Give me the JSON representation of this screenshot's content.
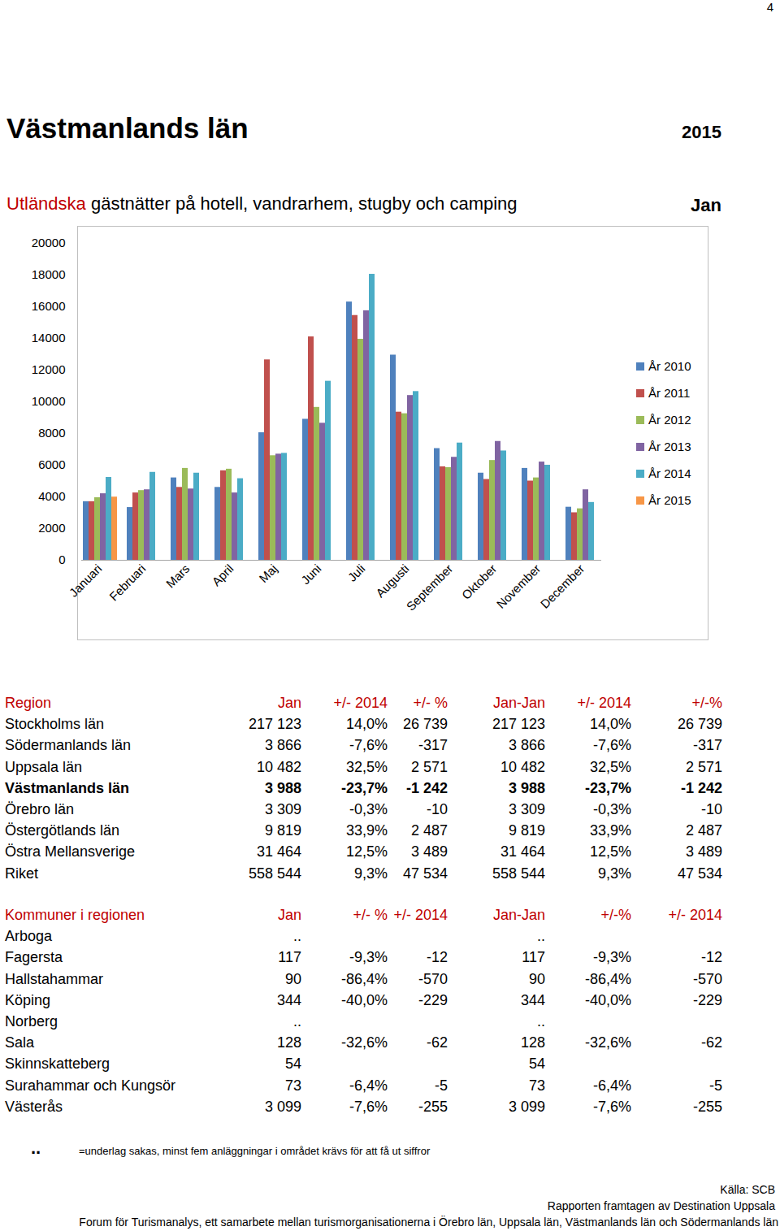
{
  "page_number": "4",
  "title": "Västmanlands län",
  "year": "2015",
  "subtitle": {
    "highlight": "Utländska",
    "text": "gästnätter på hotell, vandrarhem, stugby och camping"
  },
  "period": "Jan",
  "chart_data": {
    "type": "bar",
    "categories": [
      "Januari",
      "Februari",
      "Mars",
      "April",
      "Maj",
      "Juni",
      "Juli",
      "Augusti",
      "September",
      "Oktober",
      "November",
      "December"
    ],
    "series": [
      {
        "name": "År 2010",
        "color": "#4f81bd",
        "values": [
          3700,
          3330,
          5200,
          4600,
          8050,
          8900,
          16300,
          12950,
          7050,
          5500,
          5800,
          3350
        ]
      },
      {
        "name": "År 2011",
        "color": "#c0504d",
        "values": [
          3700,
          4250,
          4600,
          5650,
          12650,
          14100,
          15450,
          9350,
          5900,
          5100,
          5000,
          3000
        ]
      },
      {
        "name": "År 2012",
        "color": "#9bbb59",
        "values": [
          3950,
          4400,
          5800,
          5750,
          6600,
          9650,
          13950,
          9250,
          5850,
          6300,
          5200,
          3250
        ]
      },
      {
        "name": "År 2013",
        "color": "#8064a2",
        "values": [
          4200,
          4450,
          4500,
          4250,
          6700,
          8650,
          15750,
          10400,
          6500,
          7500,
          6200,
          4450
        ]
      },
      {
        "name": "År 2014",
        "color": "#4bacc6",
        "values": [
          5230,
          5550,
          5500,
          5150,
          6750,
          11300,
          18050,
          10650,
          7400,
          6900,
          6000,
          3650
        ]
      },
      {
        "name": "År 2015",
        "color": "#f79646",
        "values": [
          3988,
          null,
          null,
          null,
          null,
          null,
          null,
          null,
          null,
          null,
          null,
          null
        ]
      }
    ],
    "ylim": [
      0,
      20000
    ],
    "yticks": [
      0,
      2000,
      4000,
      6000,
      8000,
      10000,
      12000,
      14000,
      16000,
      18000,
      20000
    ],
    "grid": false,
    "legend": "right"
  },
  "tables": [
    {
      "header": [
        "Region",
        "Jan",
        "+/- 2014",
        "+/- %",
        "Jan-Jan",
        "+/- 2014",
        "+/-%"
      ],
      "rows": [
        [
          "Stockholms län",
          "217 123",
          "14,0%",
          "26 739",
          "217 123",
          "14,0%",
          "26 739"
        ],
        [
          "Södermanlands län",
          "3 866",
          "-7,6%",
          "-317",
          "3 866",
          "-7,6%",
          "-317"
        ],
        [
          "Uppsala län",
          "10 482",
          "32,5%",
          "2 571",
          "10 482",
          "32,5%",
          "2 571"
        ],
        [
          "Västmanlands län",
          "3 988",
          "-23,7%",
          "-1 242",
          "3 988",
          "-23,7%",
          "-1 242"
        ],
        [
          "Örebro län",
          "3 309",
          "-0,3%",
          "-10",
          "3 309",
          "-0,3%",
          "-10"
        ],
        [
          "Östergötlands län",
          "9 819",
          "33,9%",
          "2 487",
          "9 819",
          "33,9%",
          "2 487"
        ],
        [
          "Östra Mellansverige",
          "31 464",
          "12,5%",
          "3 489",
          "31 464",
          "12,5%",
          "3 489"
        ],
        [
          "Riket",
          "558 544",
          "9,3%",
          "47 534",
          "558 544",
          "9,3%",
          "47 534"
        ]
      ]
    },
    {
      "header": [
        "Kommuner i regionen",
        "Jan",
        "+/- %",
        "+/- 2014",
        "Jan-Jan",
        "+/-%",
        "+/- 2014"
      ],
      "rows": [
        [
          "Arboga",
          "..",
          null,
          null,
          "..",
          null,
          null
        ],
        [
          "Fagersta",
          "117",
          "-9,3%",
          "-12",
          "117",
          "-9,3%",
          "-12"
        ],
        [
          "Hallstahammar",
          "90",
          "-86,4%",
          "-570",
          "90",
          "-86,4%",
          "-570"
        ],
        [
          "Köping",
          "344",
          "-40,0%",
          "-229",
          "344",
          "-40,0%",
          "-229"
        ],
        [
          "Norberg",
          "..",
          null,
          null,
          "..",
          null,
          null
        ],
        [
          "Sala",
          "128",
          "-32,6%",
          "-62",
          "128",
          "-32,6%",
          "-62"
        ],
        [
          "Skinnskatteberg",
          "54",
          null,
          null,
          "54",
          null,
          null
        ],
        [
          "Surahammar och Kungsör",
          "73",
          "-6,4%",
          "-5",
          "73",
          "-6,4%",
          "-5"
        ],
        [
          "Västerås",
          "3 099",
          "-7,6%",
          "-255",
          "3 099",
          "-7,6%",
          "-255"
        ]
      ]
    }
  ],
  "footnote": {
    "symbol": "..",
    "text": "=underlag sakas, minst fem anläggningar i området krävs för att få ut siffror"
  },
  "footer": {
    "source": "Källa: SCB",
    "author": "Rapporten framtagen av Destination Uppsala",
    "forum": "Forum för Turismanalys, ett samarbete mellan turismorganisationerna i  Örebro län, Uppsala län, Västmanlands län och Södermanlands län"
  }
}
